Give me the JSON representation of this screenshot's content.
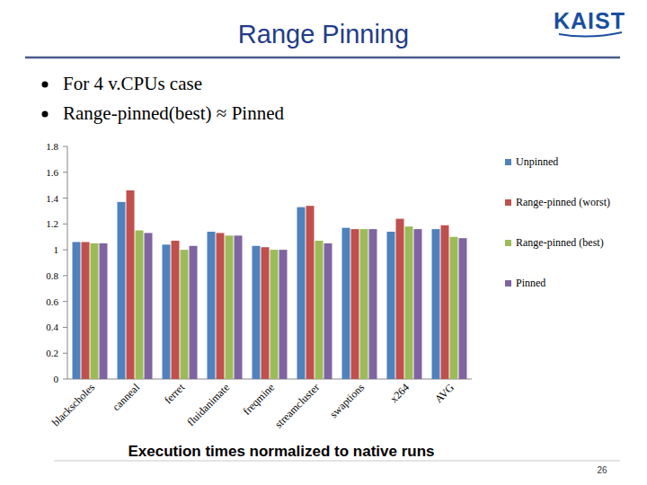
{
  "slide": {
    "title": "Range Pinning",
    "logo": "KAIST",
    "bullets": [
      "For 4 v.CPUs  case",
      "Range-pinned(best) ≈ Pinned"
    ],
    "caption": "Execution times normalized to native runs",
    "page": "26"
  },
  "chart_data": {
    "type": "bar",
    "categories": [
      "blackscholes",
      "canneal",
      "ferret",
      "fluidanimate",
      "freqmine",
      "streamcluster",
      "swaptions",
      "x264",
      "AVG"
    ],
    "series": [
      {
        "name": "Unpinned",
        "color": "#4f81bd",
        "values": [
          1.06,
          1.37,
          1.04,
          1.14,
          1.03,
          1.33,
          1.17,
          1.14,
          1.16
        ]
      },
      {
        "name": "Range-pinned (worst)",
        "color": "#c0504d",
        "values": [
          1.06,
          1.46,
          1.07,
          1.13,
          1.02,
          1.34,
          1.16,
          1.24,
          1.19
        ]
      },
      {
        "name": "Range-pinned (best)",
        "color": "#9bbb59",
        "values": [
          1.05,
          1.15,
          1.0,
          1.11,
          1.0,
          1.07,
          1.16,
          1.18,
          1.1
        ]
      },
      {
        "name": "Pinned",
        "color": "#8064a2",
        "values": [
          1.05,
          1.13,
          1.03,
          1.11,
          1.0,
          1.05,
          1.16,
          1.16,
          1.09
        ]
      }
    ],
    "ylim": [
      0,
      1.8
    ],
    "yticks": [
      0,
      0.2,
      0.4,
      0.6,
      0.8,
      1,
      1.2,
      1.4,
      1.6,
      1.8
    ],
    "grid": false,
    "legend": "right"
  }
}
